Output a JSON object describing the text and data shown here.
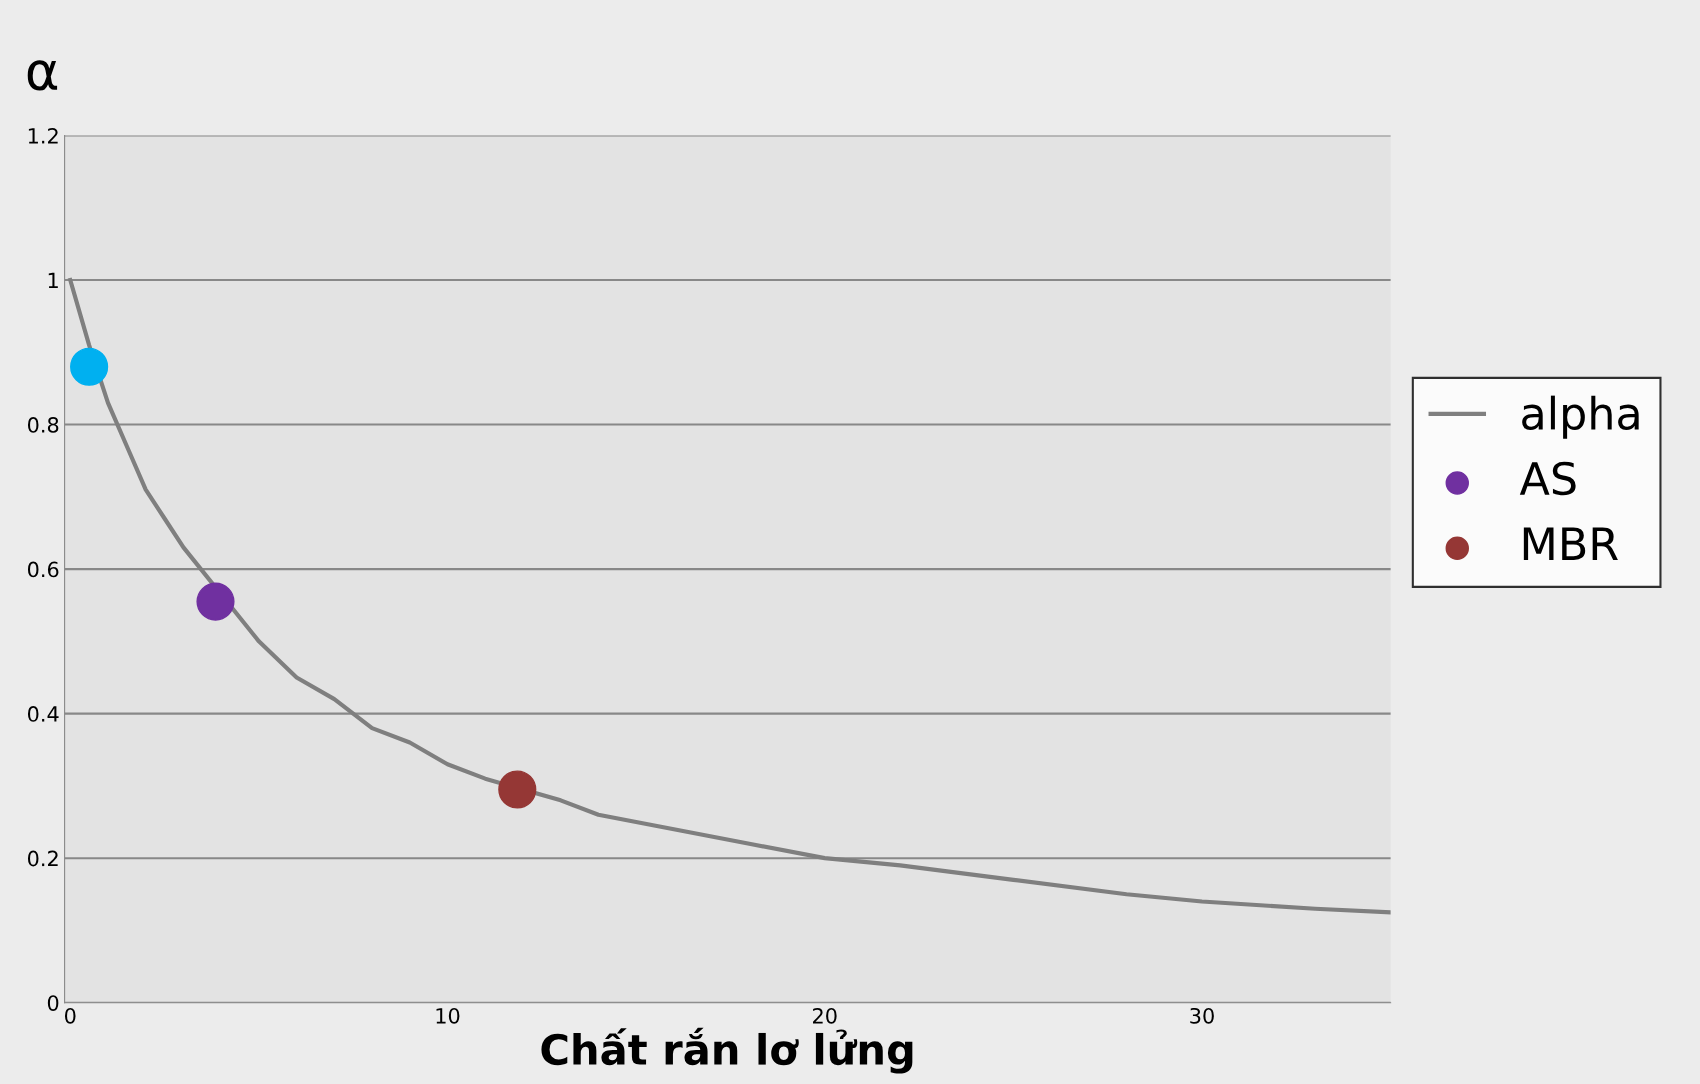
{
  "chart_data": {
    "type": "line",
    "ylabel": "α",
    "xlabel": "Chất rắn lơ lửng",
    "xlim": [
      -0.15,
      35
    ],
    "ylim": [
      0,
      1.2
    ],
    "xticks": [
      0,
      10,
      20,
      30
    ],
    "yticks": [
      0,
      0.2,
      0.4,
      0.6,
      0.8,
      1,
      1.2
    ],
    "grid": "y",
    "legend": "right",
    "marker": "none",
    "series": [
      {
        "name": "alpha",
        "color": "#7f7f7f",
        "x": [
          0,
          0.5,
          1,
          1.5,
          2,
          2.5,
          3,
          5,
          6,
          7,
          8,
          9,
          10,
          11,
          13,
          14,
          15,
          16,
          18,
          20,
          22,
          25,
          28,
          30,
          33,
          35
        ],
        "values": [
          1,
          0.91,
          0.83,
          0.77,
          0.71,
          0.67,
          0.63,
          0.5,
          0.45,
          0.42,
          0.38,
          0.36,
          0.33,
          0.31,
          0.28,
          0.26,
          0.25,
          0.24,
          0.22,
          0.2,
          0.19,
          0.17,
          0.15,
          0.14,
          0.13,
          0.125
        ]
      },
      {
        "type": "scatter",
        "color": "#00b0f0",
        "marker": "circle",
        "x": [
          0.5
        ],
        "values": [
          0.88
        ]
      },
      {
        "name": "AS",
        "type": "scatter",
        "color": "#7030a0",
        "marker": "circle",
        "x": [
          3.85
        ],
        "values": [
          0.555
        ]
      },
      {
        "name": "MBR",
        "type": "scatter",
        "color": "#953735",
        "marker": "circle",
        "x": [
          11.85
        ],
        "values": [
          0.295
        ]
      }
    ]
  }
}
